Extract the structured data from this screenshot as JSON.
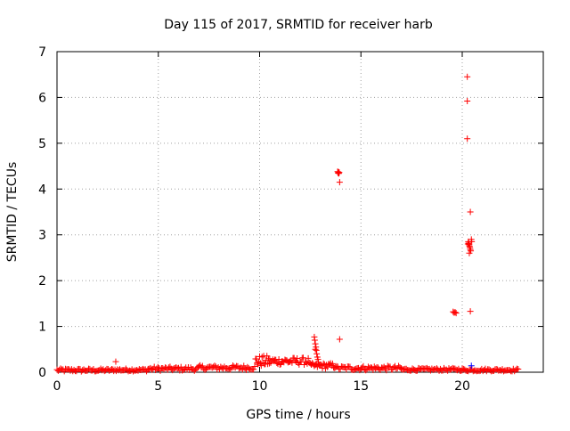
{
  "chart_data": {
    "type": "scatter",
    "title": "Day 115 of 2017, SRMTID for receiver harb",
    "xlabel": "GPS time / hours",
    "ylabel": "SRMTID / TECUs",
    "xlim": [
      0,
      24
    ],
    "ylim": [
      0,
      7
    ],
    "xticks": [
      0,
      5,
      10,
      15,
      20
    ],
    "yticks": [
      0,
      1,
      2,
      3,
      4,
      5,
      6,
      7
    ],
    "grid": true,
    "legend": "none",
    "marker": "+",
    "series_color": "#ff0000",
    "highlight_color": "#0000ff",
    "baseline_segments": [
      {
        "x_start": 0.0,
        "x_end": 2.8,
        "y_low": 0.01,
        "y_high": 0.08,
        "step": 0.06
      },
      {
        "x_start": 2.8,
        "x_end": 4.5,
        "y_low": 0.02,
        "y_high": 0.08,
        "step": 0.06
      },
      {
        "x_start": 4.5,
        "x_end": 7.0,
        "y_low": 0.03,
        "y_high": 0.12,
        "step": 0.06
      },
      {
        "x_start": 7.0,
        "x_end": 9.8,
        "y_low": 0.05,
        "y_high": 0.15,
        "step": 0.06
      },
      {
        "x_start": 9.8,
        "x_end": 10.5,
        "y_low": 0.12,
        "y_high": 0.36,
        "step": 0.04
      },
      {
        "x_start": 10.5,
        "x_end": 12.5,
        "y_low": 0.16,
        "y_high": 0.32,
        "step": 0.05
      },
      {
        "x_start": 12.5,
        "x_end": 13.8,
        "y_low": 0.08,
        "y_high": 0.2,
        "step": 0.05
      },
      {
        "x_start": 13.8,
        "x_end": 17.0,
        "y_low": 0.04,
        "y_high": 0.14,
        "step": 0.06
      },
      {
        "x_start": 17.0,
        "x_end": 20.0,
        "y_low": 0.03,
        "y_high": 0.09,
        "step": 0.06
      },
      {
        "x_start": 20.0,
        "x_end": 22.8,
        "y_low": 0.02,
        "y_high": 0.08,
        "step": 0.06
      }
    ],
    "points": [
      {
        "x": 2.9,
        "y": 0.23
      },
      {
        "x": 12.7,
        "y": 0.77
      },
      {
        "x": 12.72,
        "y": 0.7
      },
      {
        "x": 12.75,
        "y": 0.62
      },
      {
        "x": 12.78,
        "y": 0.55
      },
      {
        "x": 12.8,
        "y": 0.48
      },
      {
        "x": 12.82,
        "y": 0.4
      },
      {
        "x": 12.85,
        "y": 0.33
      },
      {
        "x": 12.88,
        "y": 0.28
      },
      {
        "x": 12.9,
        "y": 0.22
      },
      {
        "x": 12.75,
        "y": 0.5
      },
      {
        "x": 13.85,
        "y": 4.38
      },
      {
        "x": 13.87,
        "y": 4.35
      },
      {
        "x": 13.89,
        "y": 4.37
      },
      {
        "x": 13.91,
        "y": 4.34
      },
      {
        "x": 13.93,
        "y": 4.36
      },
      {
        "x": 13.95,
        "y": 4.15
      },
      {
        "x": 13.95,
        "y": 0.72
      },
      {
        "x": 19.55,
        "y": 1.32
      },
      {
        "x": 19.6,
        "y": 1.3
      },
      {
        "x": 19.65,
        "y": 1.31
      },
      {
        "x": 19.7,
        "y": 1.29
      },
      {
        "x": 20.25,
        "y": 6.45
      },
      {
        "x": 20.25,
        "y": 5.92
      },
      {
        "x": 20.25,
        "y": 5.1
      },
      {
        "x": 20.4,
        "y": 3.5
      },
      {
        "x": 20.4,
        "y": 1.33
      },
      {
        "x": 20.3,
        "y": 2.85
      },
      {
        "x": 20.32,
        "y": 2.82
      },
      {
        "x": 20.34,
        "y": 2.78
      },
      {
        "x": 20.36,
        "y": 2.75
      },
      {
        "x": 20.38,
        "y": 2.72
      },
      {
        "x": 20.4,
        "y": 2.68
      },
      {
        "x": 20.42,
        "y": 2.65
      },
      {
        "x": 20.35,
        "y": 2.6
      },
      {
        "x": 20.45,
        "y": 2.9
      },
      {
        "x": 20.47,
        "y": 2.85
      },
      {
        "x": 20.28,
        "y": 2.8
      }
    ],
    "highlight_points": [
      {
        "x": 20.45,
        "y": 0.14
      }
    ]
  }
}
